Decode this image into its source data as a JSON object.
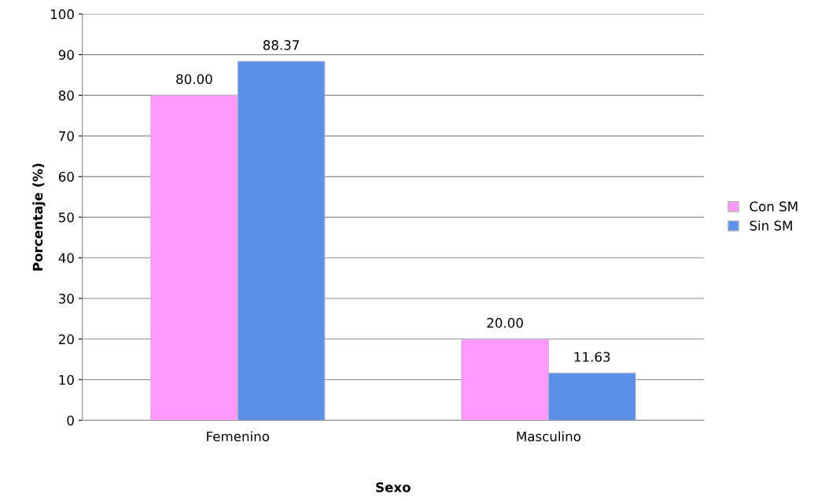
{
  "chart_data": {
    "type": "bar",
    "xlabel": "Sexo",
    "ylabel": "Porcentaje (%)",
    "categories": [
      "Femenino",
      "Masculino"
    ],
    "series": [
      {
        "name": "Con SM",
        "color": "#ff99ff",
        "values": [
          80.0,
          20.0
        ],
        "value_labels": [
          "80.00",
          "20.00"
        ]
      },
      {
        "name": "Sin SM",
        "color": "#5b8fe8",
        "values": [
          88.37,
          11.63
        ],
        "value_labels": [
          "88.37",
          "11.63"
        ]
      }
    ],
    "ylim": [
      0,
      100
    ],
    "yticks": [
      0,
      10,
      20,
      30,
      40,
      50,
      60,
      70,
      80,
      90,
      100
    ],
    "grid": "y",
    "legend": "right"
  }
}
